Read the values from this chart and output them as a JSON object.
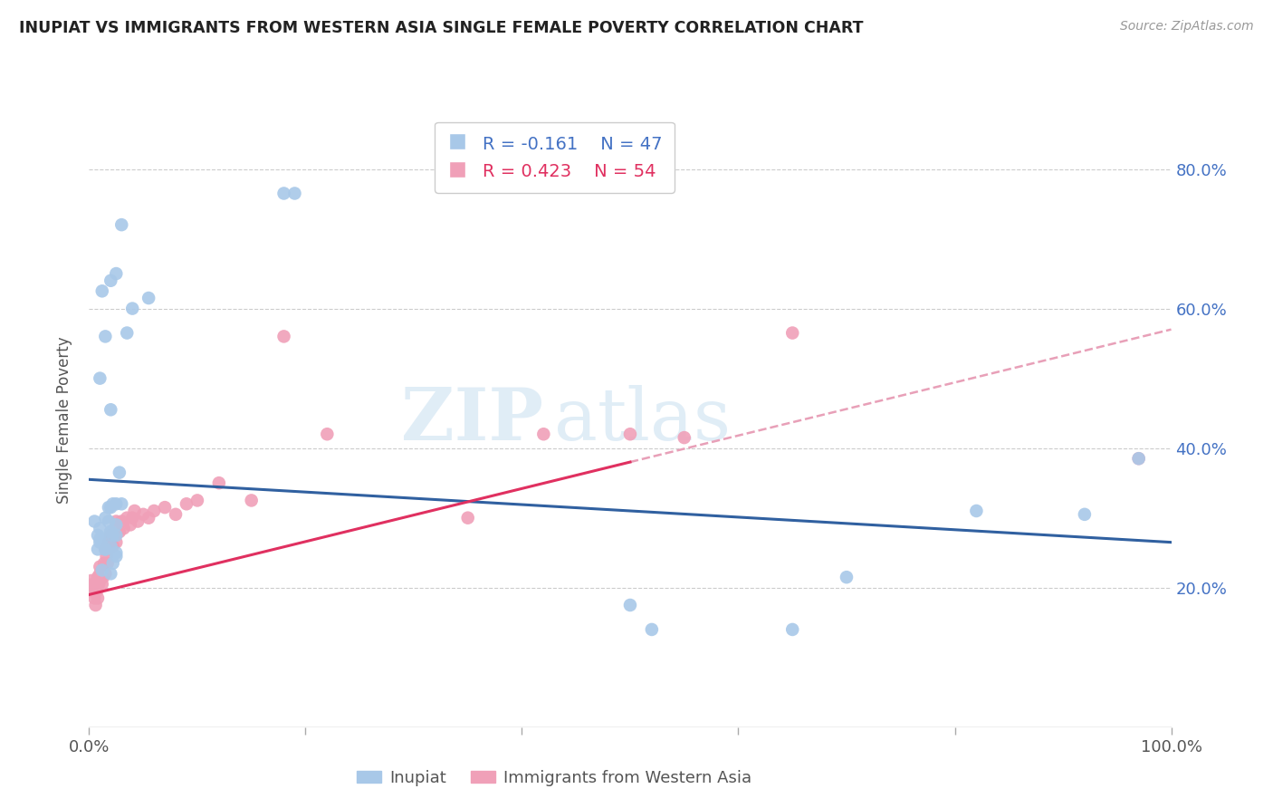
{
  "title": "INUPIAT VS IMMIGRANTS FROM WESTERN ASIA SINGLE FEMALE POVERTY CORRELATION CHART",
  "source": "Source: ZipAtlas.com",
  "ylabel": "Single Female Poverty",
  "ytick_labels": [
    "80.0%",
    "60.0%",
    "40.0%",
    "20.0%"
  ],
  "ytick_values": [
    0.8,
    0.6,
    0.4,
    0.2
  ],
  "xlim": [
    0.0,
    1.0
  ],
  "ylim": [
    0.0,
    0.88
  ],
  "legend_blue_r": "R = -0.161",
  "legend_blue_n": "N = 47",
  "legend_pink_r": "R = 0.423",
  "legend_pink_n": "N = 54",
  "blue_color": "#a8c8e8",
  "pink_color": "#f0a0b8",
  "blue_line_color": "#3060a0",
  "pink_line_color": "#e03060",
  "pink_dashed_color": "#e8a0b8",
  "watermark_zip": "ZIP",
  "watermark_atlas": "atlas",
  "inupiat_x": [
    0.015,
    0.02,
    0.02,
    0.025,
    0.01,
    0.01,
    0.015,
    0.012,
    0.008,
    0.01,
    0.015,
    0.018,
    0.02,
    0.022,
    0.025,
    0.025,
    0.018,
    0.022,
    0.02,
    0.025,
    0.03,
    0.028,
    0.02,
    0.015,
    0.01,
    0.012,
    0.02,
    0.025,
    0.03,
    0.035,
    0.04,
    0.055,
    0.18,
    0.19,
    0.005,
    0.008,
    0.012,
    0.02,
    0.022,
    0.025,
    0.5,
    0.52,
    0.65,
    0.7,
    0.82,
    0.92,
    0.97
  ],
  "inupiat_y": [
    0.255,
    0.26,
    0.28,
    0.245,
    0.27,
    0.285,
    0.255,
    0.27,
    0.255,
    0.265,
    0.3,
    0.295,
    0.28,
    0.275,
    0.29,
    0.275,
    0.315,
    0.32,
    0.315,
    0.32,
    0.32,
    0.365,
    0.455,
    0.56,
    0.5,
    0.625,
    0.64,
    0.65,
    0.72,
    0.565,
    0.6,
    0.615,
    0.765,
    0.765,
    0.295,
    0.275,
    0.225,
    0.22,
    0.235,
    0.25,
    0.175,
    0.14,
    0.14,
    0.215,
    0.31,
    0.305,
    0.385
  ],
  "westernasia_x": [
    0.002,
    0.003,
    0.004,
    0.005,
    0.005,
    0.006,
    0.007,
    0.008,
    0.008,
    0.009,
    0.01,
    0.01,
    0.012,
    0.012,
    0.013,
    0.014,
    0.015,
    0.015,
    0.016,
    0.017,
    0.018,
    0.018,
    0.02,
    0.02,
    0.022,
    0.022,
    0.025,
    0.025,
    0.025,
    0.028,
    0.03,
    0.032,
    0.035,
    0.038,
    0.04,
    0.042,
    0.045,
    0.05,
    0.055,
    0.06,
    0.07,
    0.08,
    0.09,
    0.1,
    0.12,
    0.15,
    0.18,
    0.22,
    0.35,
    0.42,
    0.5,
    0.55,
    0.65,
    0.97
  ],
  "westernasia_y": [
    0.21,
    0.195,
    0.205,
    0.185,
    0.2,
    0.175,
    0.195,
    0.185,
    0.215,
    0.205,
    0.22,
    0.23,
    0.205,
    0.225,
    0.215,
    0.235,
    0.22,
    0.255,
    0.245,
    0.235,
    0.255,
    0.265,
    0.265,
    0.275,
    0.26,
    0.275,
    0.265,
    0.285,
    0.295,
    0.28,
    0.295,
    0.285,
    0.3,
    0.29,
    0.3,
    0.31,
    0.295,
    0.305,
    0.3,
    0.31,
    0.315,
    0.305,
    0.32,
    0.325,
    0.35,
    0.325,
    0.56,
    0.42,
    0.3,
    0.42,
    0.42,
    0.415,
    0.565,
    0.385
  ],
  "blue_intercept": 0.355,
  "blue_slope": -0.09,
  "pink_intercept": 0.19,
  "pink_slope": 0.38
}
